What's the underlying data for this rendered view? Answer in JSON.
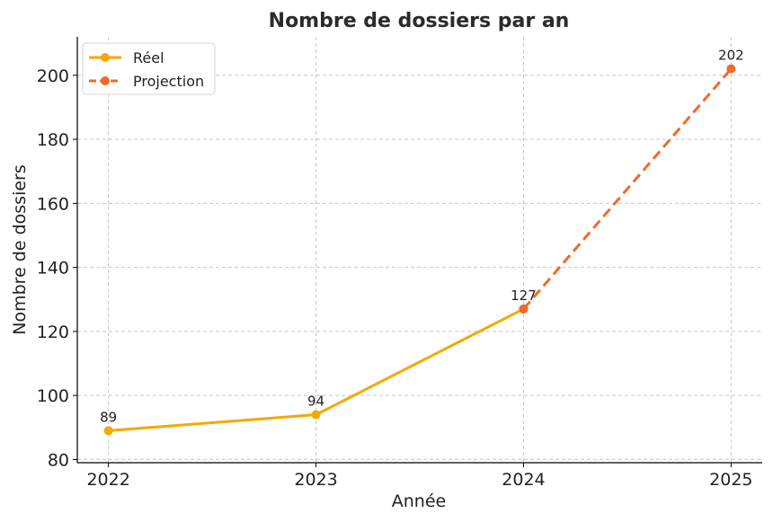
{
  "chart_data": {
    "type": "line",
    "title": "Nombre de dossiers par an",
    "xlabel": "Année",
    "ylabel": "Nombre de dossiers",
    "categories": [
      "2022",
      "2023",
      "2024",
      "2025"
    ],
    "x": [
      2022,
      2023,
      2024,
      2025
    ],
    "ylim": [
      79,
      212
    ],
    "yticks": [
      80,
      100,
      120,
      140,
      160,
      180,
      200
    ],
    "grid": true,
    "legend_position": "top-left",
    "series": [
      {
        "name": "Réel",
        "x": [
          2022,
          2023,
          2024
        ],
        "values": [
          89,
          94,
          127
        ],
        "color": "#f5a800",
        "style": "solid"
      },
      {
        "name": "Projection",
        "x": [
          2024,
          2025
        ],
        "values": [
          127,
          202
        ],
        "color": "#ef6a2a",
        "style": "dashed"
      }
    ],
    "data_labels": [
      {
        "x": 2022,
        "value": 89,
        "text": "89"
      },
      {
        "x": 2023,
        "value": 94,
        "text": "94"
      },
      {
        "x": 2024,
        "value": 127,
        "text": "127"
      },
      {
        "x": 2025,
        "value": 202,
        "text": "202"
      }
    ]
  }
}
